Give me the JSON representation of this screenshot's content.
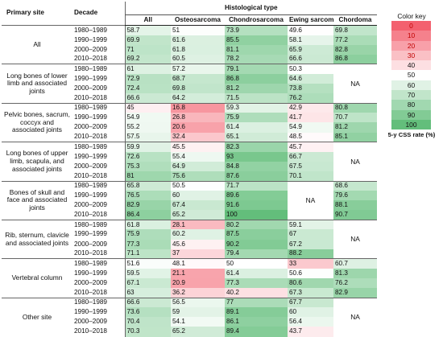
{
  "header": {
    "primary_site": "Primary site",
    "decade": "Decade",
    "histological_type": "Histological type",
    "columns": [
      "All",
      "Osteosarcoma",
      "Chondrosarcoma",
      "Ewing sarcoma",
      "Chordoma"
    ]
  },
  "decades": [
    "1980–1989",
    "1990–1999",
    "2000–2009",
    "2010–2018"
  ],
  "groups": [
    {
      "site": "All",
      "rows": [
        [
          "58.7",
          "51",
          "73.9",
          "49.6",
          "69.8"
        ],
        [
          "69.9",
          "61.6",
          "85.5",
          "58.1",
          "77.2"
        ],
        [
          "71",
          "61.8",
          "81.1",
          "65.9",
          "82.8"
        ],
        [
          "69.2",
          "60.5",
          "78.2",
          "66.6",
          "86.8"
        ]
      ]
    },
    {
      "site": "Long bones of lower limb and associated joints",
      "chordoma_na": true,
      "rows": [
        [
          "61",
          "57.2",
          "79.1",
          "50.3"
        ],
        [
          "72.9",
          "68.7",
          "86.8",
          "64.6"
        ],
        [
          "72.4",
          "69.8",
          "81.2",
          "73.8"
        ],
        [
          "66.6",
          "64.2",
          "71.5",
          "76.2"
        ]
      ]
    },
    {
      "site": "Pelvic bones, sacrum, coccyx and associated joints",
      "rows": [
        [
          "45",
          "16.8",
          "59.3",
          "42.9",
          "80.8"
        ],
        [
          "54.9",
          "26.8",
          "75.9",
          "41.7",
          "70.7"
        ],
        [
          "55.2",
          "20.6",
          "61.4",
          "54.9",
          "81.2"
        ],
        [
          "57.5",
          "32.4",
          "65.1",
          "48.5",
          "85.1"
        ]
      ]
    },
    {
      "site": "Long bones of upper limb, scapula, and associated joints",
      "chordoma_na": true,
      "rows": [
        [
          "59.9",
          "45.5",
          "82.3",
          "45.7"
        ],
        [
          "72.6",
          "55.4",
          "93",
          "66.7"
        ],
        [
          "75.3",
          "64.9",
          "84.8",
          "67.5"
        ],
        [
          "81",
          "75.6",
          "87.6",
          "70.1"
        ]
      ]
    },
    {
      "site": "Bones of skull and face and associated joints",
      "ewing_na": true,
      "rows": [
        [
          "65.8",
          "50.5",
          "71.7",
          "68.6"
        ],
        [
          "76.5",
          "60",
          "89.6",
          "79.6"
        ],
        [
          "82.9",
          "67.4",
          "91.6",
          "88.1"
        ],
        [
          "86.4",
          "65.2",
          "100",
          "90.7"
        ]
      ]
    },
    {
      "site": "Rib, sternum, clavicle and associated joints",
      "chordoma_na": true,
      "rows": [
        [
          "61.8",
          "28.1",
          "80.2",
          "59.1"
        ],
        [
          "75.9",
          "60.2",
          "87.5",
          "67"
        ],
        [
          "77.3",
          "45.6",
          "90.2",
          "67.2"
        ],
        [
          "71.1",
          "37",
          "79.4",
          "88.2"
        ]
      ]
    },
    {
      "site": "Vertebral column",
      "rows": [
        [
          "51.6",
          "48.1",
          "50",
          "33",
          "60.7"
        ],
        [
          "59.5",
          "21.1",
          "61.4",
          "50.6",
          "81.3"
        ],
        [
          "67.1",
          "20.9",
          "77.3",
          "80.6",
          "76.2"
        ],
        [
          "63",
          "36.2",
          "40.2",
          "67.3",
          "82.9"
        ]
      ]
    },
    {
      "site": "Other site",
      "chordoma_na": true,
      "rows": [
        [
          "66.6",
          "56.5",
          "77",
          "67.7"
        ],
        [
          "73.6",
          "59",
          "89.1",
          "60"
        ],
        [
          "70.4",
          "54.1",
          "86.1",
          "56.4"
        ],
        [
          "70.3",
          "65.2",
          "89.4",
          "43.7"
        ]
      ]
    }
  ],
  "na_label": "NA",
  "color_key": {
    "title": "Color key",
    "levels": [
      "0",
      "10",
      "20",
      "30",
      "40",
      "50",
      "60",
      "70",
      "80",
      "90",
      "100"
    ],
    "low_color": "#f3616f",
    "mid_color": "#ffffff",
    "high_color": "#63be7b",
    "caption": "5-y CSS rate (%)"
  }
}
